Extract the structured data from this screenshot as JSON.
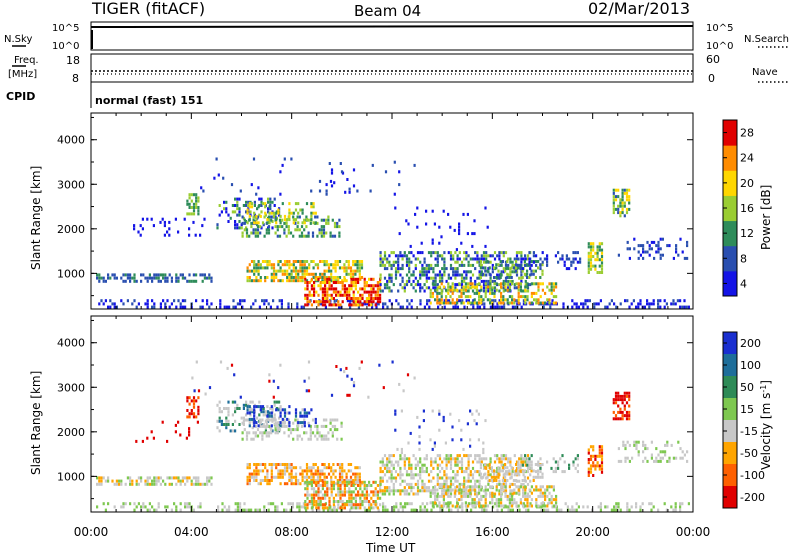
{
  "header": {
    "station": "TIGER (fitACF)",
    "beam": "Beam 04",
    "date": "02/Mar/2013"
  },
  "nsky_panel": {
    "left_label": "N.Sky",
    "right_label": "N.Search",
    "left_ticks": [
      "10^5",
      "10^0"
    ],
    "right_ticks": [
      "10^5",
      "10^0"
    ]
  },
  "freq_panel": {
    "left_label_top": "Freq.",
    "left_label_unit": "[MHz]",
    "right_label": "Nave",
    "left_ticks": [
      "18",
      "8"
    ],
    "right_ticks": [
      "60",
      "0"
    ]
  },
  "cpid_panel": {
    "label": "CPID",
    "text": "normal (fast) 151"
  },
  "chart_data": [
    {
      "type": "heatmap",
      "name": "power",
      "ylabel": "Slant Range [km]",
      "xlabel": "",
      "xlim": [
        "00:00",
        "24:00"
      ],
      "ylim": [
        200,
        4600
      ],
      "y_ticks": [
        "1000",
        "2000",
        "3000",
        "4000"
      ],
      "colorbar_label": "Power [dB]",
      "colorbar_ticks": [
        "4",
        "8",
        "12",
        "16",
        "20",
        "24",
        "28"
      ],
      "colors": [
        "#1414e6",
        "#2a4fb0",
        "#2e8c5a",
        "#9acd32",
        "#ffd700",
        "#ff8c00",
        "#e00000"
      ]
    },
    {
      "type": "heatmap",
      "name": "velocity",
      "ylabel": "Slant Range [km]",
      "xlabel": "Time UT",
      "xlim": [
        "00:00",
        "24:00"
      ],
      "ylim": [
        200,
        4600
      ],
      "y_ticks": [
        "1000",
        "2000",
        "3000",
        "4000"
      ],
      "x_ticks": [
        "00:00",
        "04:00",
        "08:00",
        "12:00",
        "16:00",
        "20:00",
        "00:00"
      ],
      "colorbar_label": "Velocity [m s^-1]",
      "colorbar_ticks": [
        "200",
        "100",
        "50",
        "15",
        "-15",
        "-50",
        "-100",
        "-200"
      ],
      "colors": [
        "#1a2fd0",
        "#1e6e9a",
        "#2e8b57",
        "#7ec850",
        "#c8c8c8",
        "#ffa500",
        "#ff6000",
        "#e00000"
      ]
    }
  ]
}
